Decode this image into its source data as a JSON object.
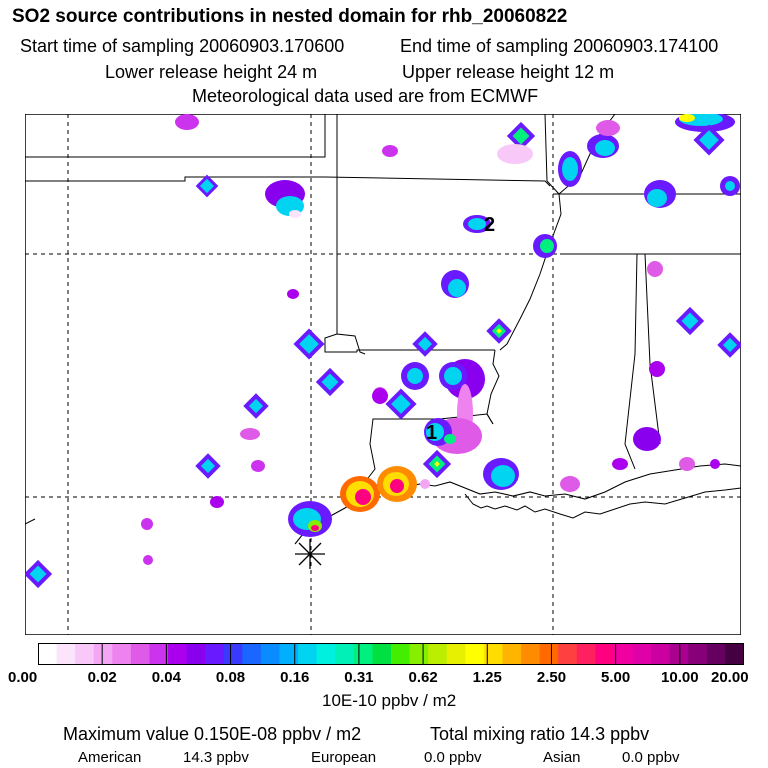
{
  "header": {
    "title": "SO2 source contributions in nested domain for rhb_20060822",
    "start_label": "Start time of sampling 20060903.170600",
    "end_label": "End time of sampling 20060903.174100",
    "lower_release": "Lower release height   24 m",
    "upper_release": "Upper release height   12 m",
    "met_data": "Meteorological data used are from ECMWF"
  },
  "map": {
    "markers": [
      {
        "label": "1",
        "kind": "number"
      },
      {
        "label": "2",
        "kind": "number"
      }
    ],
    "station_symbol": "asterisk-star"
  },
  "legend": {
    "units": "10E-10 ppbv / m2",
    "ticks": [
      "0.00",
      "0.02",
      "0.04",
      "0.08",
      "0.16",
      "0.31",
      "0.62",
      "1.25",
      "2.50",
      "5.00",
      "10.00",
      "20.00"
    ],
    "colors": [
      "#ffffff",
      "#fce4fc",
      "#f8c8f8",
      "#f3a6f3",
      "#ee82ee",
      "#e05ae8",
      "#cc33ee",
      "#aa00ee",
      "#8800ee",
      "#6a1aff",
      "#3a3aff",
      "#1a66ff",
      "#0a8cff",
      "#00b0ff",
      "#00d4f0",
      "#00f0e0",
      "#00f0b8",
      "#00f080",
      "#00e040",
      "#44ee00",
      "#88ee00",
      "#bbee00",
      "#e6f000",
      "#ffff00",
      "#ffdd00",
      "#ffb400",
      "#ff8c00",
      "#ff6a00",
      "#ff4040",
      "#ff2060",
      "#ff0080",
      "#f000a0",
      "#e000a8",
      "#cc00a0",
      "#aa0090",
      "#880078",
      "#660060",
      "#440040"
    ]
  },
  "summary": {
    "max_value": "Maximum value  0.150E-08 ppbv / m2",
    "total_mixing": "Total mixing ratio      14.3 ppbv",
    "american_label": "American",
    "american_value": "14.3 ppbv",
    "european_label": "European",
    "european_value": "0.0 ppbv",
    "asian_label": "Asian",
    "asian_value": "0.0 ppbv"
  }
}
